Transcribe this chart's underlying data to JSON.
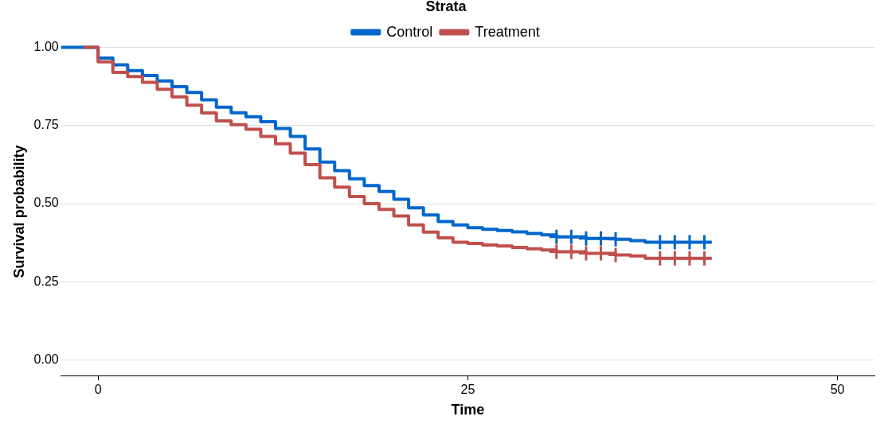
{
  "chart_data": {
    "type": "step",
    "xlabel": "Time",
    "ylabel": "Survival probability",
    "legend_title": "Strata",
    "legend": "top",
    "xlim": [
      -2.5,
      52.5
    ],
    "xticks": [
      0,
      25,
      50
    ],
    "ylim": [
      -0.05,
      1
    ],
    "yticks": [
      {
        "value": 0,
        "label": "0.00"
      },
      {
        "value": 0.25,
        "label": "0.25"
      },
      {
        "value": 0.5,
        "label": "0.50"
      },
      {
        "value": 0.75,
        "label": "0.75"
      },
      {
        "value": 1,
        "label": "1.00"
      }
    ],
    "grid": "y",
    "series": [
      {
        "name": "Control",
        "color": "#0066cc",
        "x": [
          -2.5,
          0,
          1,
          2,
          3,
          4,
          5,
          6,
          7,
          8,
          9,
          10,
          11,
          12,
          13,
          14,
          15,
          16,
          17,
          18,
          19,
          20,
          21,
          22,
          23,
          24,
          25,
          26,
          27,
          28,
          29,
          30,
          31,
          33,
          35,
          36,
          37,
          41.5
        ],
        "values": [
          1,
          0.966,
          0.944,
          0.926,
          0.91,
          0.893,
          0.874,
          0.856,
          0.832,
          0.809,
          0.791,
          0.778,
          0.762,
          0.741,
          0.715,
          0.675,
          0.633,
          0.606,
          0.58,
          0.558,
          0.539,
          0.514,
          0.487,
          0.464,
          0.443,
          0.432,
          0.423,
          0.418,
          0.414,
          0.41,
          0.405,
          0.4,
          0.394,
          0.389,
          0.386,
          0.382,
          0.377,
          0.377
        ]
      },
      {
        "name": "Treatment",
        "color": "#c0504d",
        "x": [
          -1,
          0,
          1,
          2,
          3,
          4,
          5,
          6,
          7,
          8,
          9,
          10,
          11,
          12,
          13,
          14,
          15,
          16,
          17,
          18,
          19,
          20,
          21,
          22,
          23,
          24,
          25,
          26,
          27,
          28,
          29,
          30,
          31,
          33,
          35,
          36,
          37,
          41.5
        ],
        "values": [
          1,
          0.954,
          0.92,
          0.907,
          0.888,
          0.866,
          0.842,
          0.815,
          0.79,
          0.765,
          0.753,
          0.738,
          0.715,
          0.692,
          0.662,
          0.625,
          0.583,
          0.553,
          0.523,
          0.5,
          0.482,
          0.461,
          0.432,
          0.409,
          0.391,
          0.377,
          0.373,
          0.368,
          0.365,
          0.36,
          0.356,
          0.352,
          0.346,
          0.341,
          0.336,
          0.333,
          0.325,
          0.325
        ]
      },
      {
        "type": "scatter",
        "marker": "cross",
        "color": "#0066cc",
        "x": [
          31,
          32,
          33,
          34,
          35,
          38,
          39,
          40,
          41
        ],
        "values": [
          0.394,
          0.394,
          0.389,
          0.389,
          0.386,
          0.377,
          0.377,
          0.377,
          0.377
        ]
      },
      {
        "type": "scatter",
        "marker": "cross",
        "color": "#c0504d",
        "x": [
          31,
          32,
          33,
          34,
          35,
          38,
          39,
          40,
          41
        ],
        "values": [
          0.346,
          0.346,
          0.341,
          0.341,
          0.336,
          0.325,
          0.325,
          0.325,
          0.325
        ]
      }
    ]
  }
}
